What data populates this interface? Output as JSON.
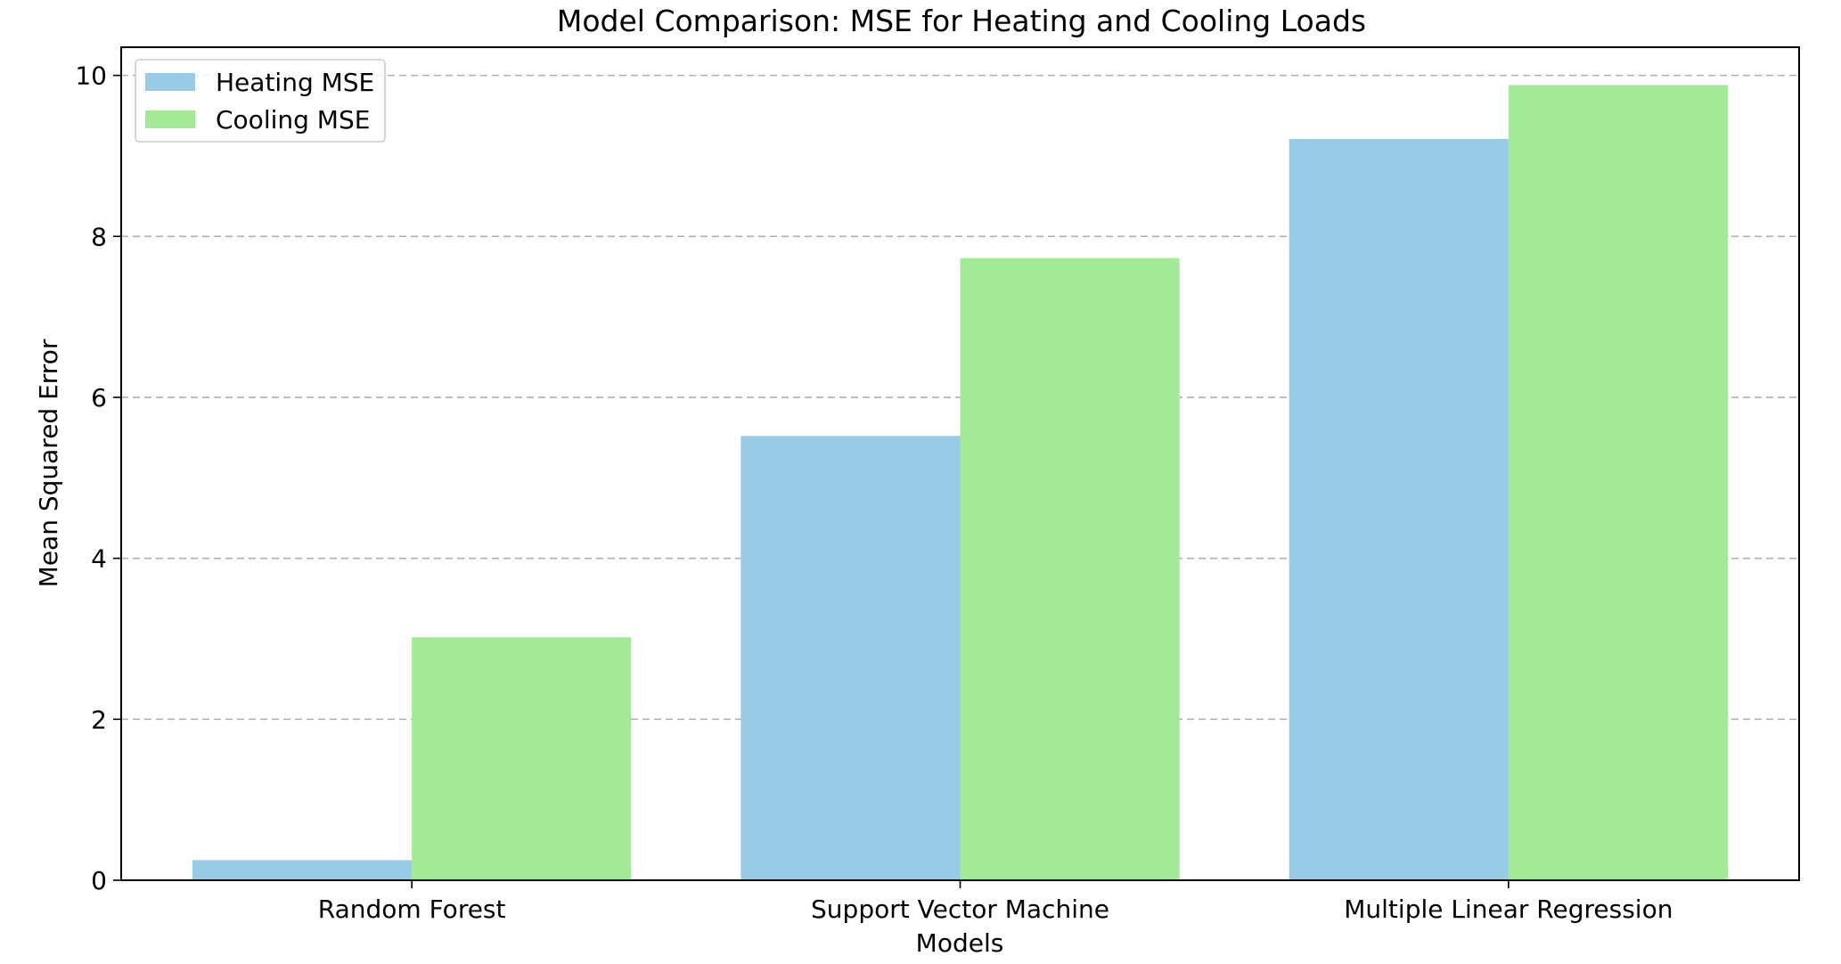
{
  "chart_data": {
    "type": "bar",
    "title": "Model Comparison: MSE for Heating and Cooling Loads",
    "xlabel": "Models",
    "ylabel": "Mean Squared Error",
    "categories": [
      "Random Forest",
      "Support Vector Machine",
      "Multiple Linear Regression"
    ],
    "series": [
      {
        "name": "Heating MSE",
        "color": "#97cbe6",
        "values": [
          0.25,
          5.52,
          9.21
        ]
      },
      {
        "name": "Cooling MSE",
        "color": "#a3ea96",
        "values": [
          3.02,
          7.73,
          9.88
        ]
      }
    ],
    "ylim": [
      0,
      10.35
    ],
    "yticks": [
      0,
      2,
      4,
      6,
      8,
      10
    ],
    "grid": {
      "axis": "y",
      "style": "dashed"
    },
    "legend": {
      "placement": "top-left"
    }
  }
}
